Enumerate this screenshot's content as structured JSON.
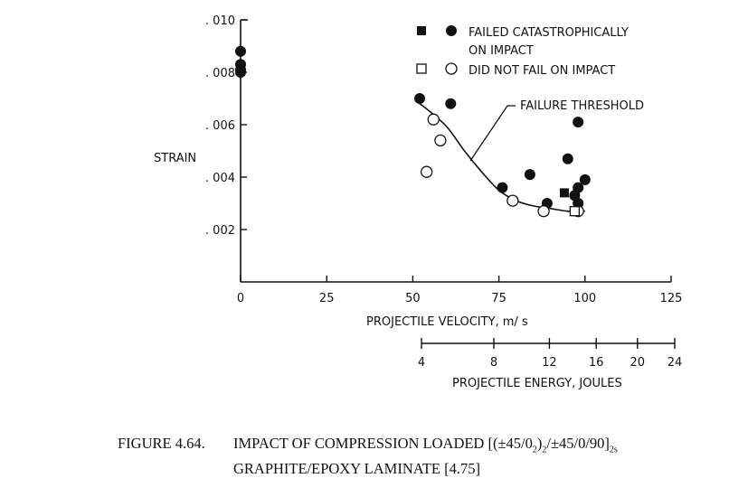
{
  "chart_data": {
    "type": "scatter",
    "ylabel": "STRAIN",
    "xlabel": "PROJECTILE VELOCITY, m/ s",
    "x2label": "PROJECTILE ENERGY, JOULES",
    "xlim": [
      0,
      125
    ],
    "ylim": [
      0,
      0.01
    ],
    "x_ticks": [
      0,
      25,
      50,
      75,
      100,
      125
    ],
    "x_tick_labels": [
      "0",
      "25",
      "50",
      "75",
      "100",
      "125"
    ],
    "y_ticks": [
      0.002,
      0.004,
      0.006,
      0.008,
      0.01
    ],
    "y_tick_labels": [
      ". 002",
      ". 004",
      ". 006",
      ". 008",
      ". 010"
    ],
    "energy_ticks": [
      4,
      8,
      12,
      16,
      20,
      24
    ],
    "energy_tick_labels": [
      "4",
      "8",
      "12",
      "16",
      "20",
      "24"
    ],
    "legend": {
      "failed_line1": "FAILED CATASTROPHICALLY",
      "failed_line2": "ON IMPACT",
      "not_failed": "DID NOT FAIL ON IMPACT"
    },
    "annotation": "FAILURE THRESHOLD",
    "series": [
      {
        "name": "Failed catastrophically on impact (filled circle)",
        "points": [
          [
            0,
            0.0088
          ],
          [
            0,
            0.0083
          ],
          [
            0,
            0.0081
          ],
          [
            0,
            0.008
          ],
          [
            52,
            0.007
          ],
          [
            61,
            0.0068
          ],
          [
            76,
            0.0036
          ],
          [
            84,
            0.0041
          ],
          [
            89,
            0.003
          ],
          [
            95,
            0.0047
          ],
          [
            98,
            0.0061
          ],
          [
            97,
            0.0033
          ],
          [
            98,
            0.0036
          ],
          [
            100,
            0.0039
          ],
          [
            98,
            0.003
          ]
        ]
      },
      {
        "name": "Failed catastrophically on impact (filled square)",
        "points": [
          [
            94,
            0.0034
          ]
        ]
      },
      {
        "name": "Did not fail on impact (open circle)",
        "points": [
          [
            54,
            0.0042
          ],
          [
            56,
            0.0062
          ],
          [
            58,
            0.0054
          ],
          [
            79,
            0.0031
          ],
          [
            88,
            0.0027
          ],
          [
            98,
            0.0027
          ]
        ]
      },
      {
        "name": "Did not fail on impact (open square)",
        "points": [
          [
            97,
            0.0027
          ]
        ]
      },
      {
        "name": "Failure threshold",
        "points": [
          [
            51,
            0.0069
          ],
          [
            55,
            0.0065
          ],
          [
            60,
            0.0059
          ],
          [
            65,
            0.005
          ],
          [
            70,
            0.0042
          ],
          [
            75,
            0.0035
          ],
          [
            80,
            0.0031
          ],
          [
            85,
            0.0029
          ],
          [
            90,
            0.0028
          ],
          [
            95,
            0.0027
          ],
          [
            100,
            0.0027
          ]
        ]
      }
    ]
  },
  "caption": {
    "number": "FIGURE 4.64.",
    "line1_pre": "IMPACT OF COMPRESSION LOADED [(±45/0",
    "sub1": "2",
    "line1_mid": ")",
    "sub2": "2",
    "line1_post": "/±45/0/90]",
    "sub3": "2s",
    "line2": "GRAPHITE/EPOXY LAMINATE [4.75]"
  }
}
